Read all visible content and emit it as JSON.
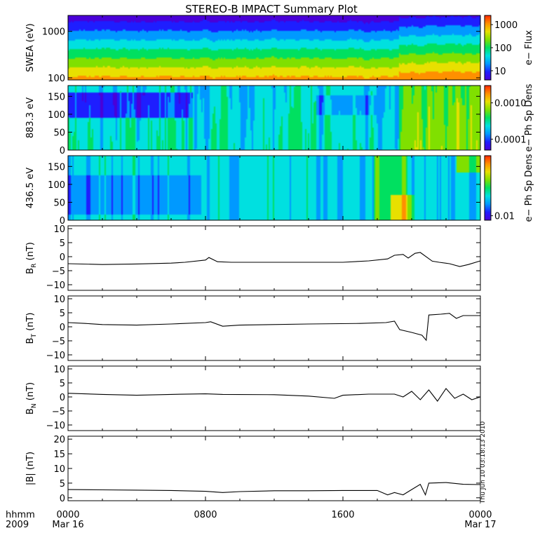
{
  "title": "STEREO-B IMPACT Summary Plot",
  "footer": {
    "row1": "hhmm",
    "row2": "2009",
    "timestamp": "Thu Jun 10 03:18:13 2010"
  },
  "x_axis": {
    "ticks": [
      {
        "top": "0000",
        "bottom": "Mar 16",
        "hour": 0
      },
      {
        "top": "0800",
        "bottom": "",
        "hour": 8
      },
      {
        "top": "1600",
        "bottom": "",
        "hour": 16
      },
      {
        "top": "0000",
        "bottom": "Mar 17",
        "hour": 24
      }
    ],
    "range_hours": [
      0,
      24
    ]
  },
  "colors": {
    "colormap": [
      "#4a00d8",
      "#1e1eff",
      "#0099ff",
      "#00e0e0",
      "#00e060",
      "#80e000",
      "#e8e000",
      "#ff9000",
      "#ff2800"
    ],
    "trace": "#000000"
  },
  "chart_data": [
    {
      "type": "heatmap",
      "ylabel": "SWEA (eV)",
      "yscale": "log",
      "ylim": [
        90,
        2200
      ],
      "yticks": [
        "100",
        "1000"
      ],
      "ytick_values": [
        100,
        1000
      ],
      "colorbar_label": "e− Flux",
      "colorbar_ticks": [
        "1000",
        "100",
        "10"
      ],
      "colorbar_tick_values": [
        1000,
        100,
        10
      ],
      "colorbar_range": [
        4,
        2500
      ],
      "description_rows": "flux decreasing with energy; enhanced after ~19.5h"
    },
    {
      "type": "heatmap",
      "ylabel": "883.3 eV",
      "ylim": [
        0,
        180
      ],
      "yticks": [
        "0",
        "50",
        "100",
        "150"
      ],
      "ytick_values": [
        0,
        50,
        100,
        150
      ],
      "colorbar_label": "e− Ph Sp Dens",
      "colorbar_ticks": [
        "0.0010",
        "0.0001"
      ],
      "colorbar_tick_values": [
        0.001,
        0.0001
      ],
      "colorbar_range": [
        5e-05,
        0.003
      ]
    },
    {
      "type": "heatmap",
      "ylabel": "436.5 eV",
      "ylim": [
        0,
        180
      ],
      "yticks": [
        "0",
        "50",
        "100",
        "150"
      ],
      "ytick_values": [
        0,
        50,
        100,
        150
      ],
      "colorbar_label": "e− Ph Sp Dens",
      "colorbar_ticks": [
        "0.01"
      ],
      "colorbar_tick_values": [
        0.01
      ],
      "colorbar_range": [
        0.008,
        0.2
      ]
    },
    {
      "type": "line",
      "ylabel": "B_R (nT)",
      "ylabel_main": "B",
      "ylabel_sub": "R",
      "ylabel_unit": " (nT)",
      "ylim": [
        -12,
        11
      ],
      "yticks": [
        "10",
        "5",
        "0",
        "−5",
        "−10"
      ],
      "ytick_values": [
        10,
        5,
        0,
        -5,
        -10
      ],
      "x": [
        0,
        2,
        4,
        6,
        6.8,
        8,
        8.2,
        8.7,
        9.5,
        12,
        16,
        17.5,
        18.6,
        19,
        19.5,
        19.8,
        20.2,
        20.5,
        21.2,
        21.6,
        22.2,
        22.8,
        23.3,
        24
      ],
      "y": [
        -2.5,
        -2.8,
        -2.6,
        -2.3,
        -2.0,
        -1.2,
        -0.3,
        -1.8,
        -2.0,
        -2.0,
        -2.0,
        -1.5,
        -0.8,
        0.5,
        0.8,
        -0.5,
        1.2,
        1.5,
        -1.6,
        -2.0,
        -2.5,
        -3.5,
        -2.8,
        -1.5
      ]
    },
    {
      "type": "line",
      "ylabel": "B_T (nT)",
      "ylabel_main": "B",
      "ylabel_sub": "T",
      "ylabel_unit": " (nT)",
      "ylim": [
        -12,
        11
      ],
      "yticks": [
        "10",
        "5",
        "0",
        "−5",
        "−10"
      ],
      "ytick_values": [
        10,
        5,
        0,
        -5,
        -10
      ],
      "x": [
        0,
        1,
        2,
        4,
        6,
        8,
        8.3,
        9,
        10,
        14,
        17,
        18.5,
        19,
        19.3,
        20,
        20.6,
        20.85,
        21,
        21.7,
        22.2,
        22.6,
        23,
        24
      ],
      "y": [
        1.5,
        1.2,
        0.8,
        0.6,
        1.0,
        1.5,
        1.8,
        0.2,
        0.6,
        1.0,
        1.2,
        1.5,
        2.0,
        -1.0,
        -2.0,
        -3.0,
        -4.8,
        4.2,
        4.5,
        4.8,
        3.0,
        4.0,
        4.0
      ]
    },
    {
      "type": "line",
      "ylabel": "B_N (nT)",
      "ylabel_main": "B",
      "ylabel_sub": "N",
      "ylabel_unit": " (nT)",
      "ylim": [
        -12,
        11
      ],
      "yticks": [
        "10",
        "5",
        "0",
        "−5",
        "−10"
      ],
      "ytick_values": [
        10,
        5,
        0,
        -5,
        -10
      ],
      "x": [
        0,
        2,
        4,
        6,
        8,
        9,
        12,
        14,
        15.5,
        16,
        17.5,
        19,
        19.5,
        20,
        20.5,
        21,
        21.5,
        22,
        22.5,
        23,
        23.5,
        24
      ],
      "y": [
        1.3,
        0.9,
        0.6,
        0.9,
        1.1,
        0.9,
        0.8,
        0.3,
        -0.5,
        0.6,
        1.0,
        1.0,
        0.0,
        2.0,
        -1.0,
        2.5,
        -1.5,
        3.0,
        -0.5,
        1.0,
        -1.0,
        0.0
      ]
    },
    {
      "type": "line",
      "ylabel": "|B| (nT)",
      "ylim": [
        -1,
        21
      ],
      "yticks": [
        "20",
        "15",
        "10",
        "5",
        "0"
      ],
      "ytick_values": [
        20,
        15,
        10,
        5,
        0
      ],
      "x": [
        0,
        2,
        4,
        6,
        8,
        9,
        10,
        12,
        14,
        16,
        18,
        18.6,
        19,
        19.5,
        20,
        20.5,
        20.8,
        21,
        22,
        23,
        24
      ],
      "y": [
        2.8,
        2.7,
        2.6,
        2.5,
        2.2,
        1.8,
        2.1,
        2.4,
        2.4,
        2.5,
        2.5,
        1.0,
        1.8,
        1.0,
        2.8,
        4.6,
        1.0,
        5.0,
        5.2,
        4.6,
        4.5
      ]
    }
  ]
}
